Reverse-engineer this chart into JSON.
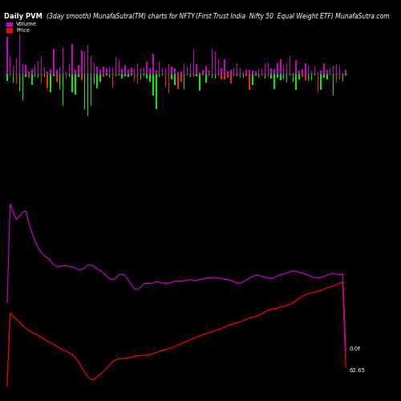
{
  "title_left": "Daily PVM",
  "title_center": "(3day smooth) MunafaSutra(TM) charts for NFTY",
  "title_right": "(First Trust India  Nifty 50  Equal Weight ETF) MunafaSutra.com",
  "legend_volume_color": "#cc00cc",
  "legend_price_color": "#ff0000",
  "legend_volume_label": "Volume",
  "legend_price_label": "Price",
  "background_color": "#000000",
  "text_color": "#ffffff",
  "label_right_top": "0.0f",
  "label_right_bottom": "62.65",
  "n_points": 110,
  "volume_bar_colors_green": "#00ee00",
  "volume_bar_colors_magenta": "#cc00cc",
  "volume_bar_colors_red": "#ff2200",
  "price_line_color": "#ff0000",
  "pvm_line_color": "#cc00cc",
  "title_fontsize": 6.0,
  "label_fontsize": 5.0
}
